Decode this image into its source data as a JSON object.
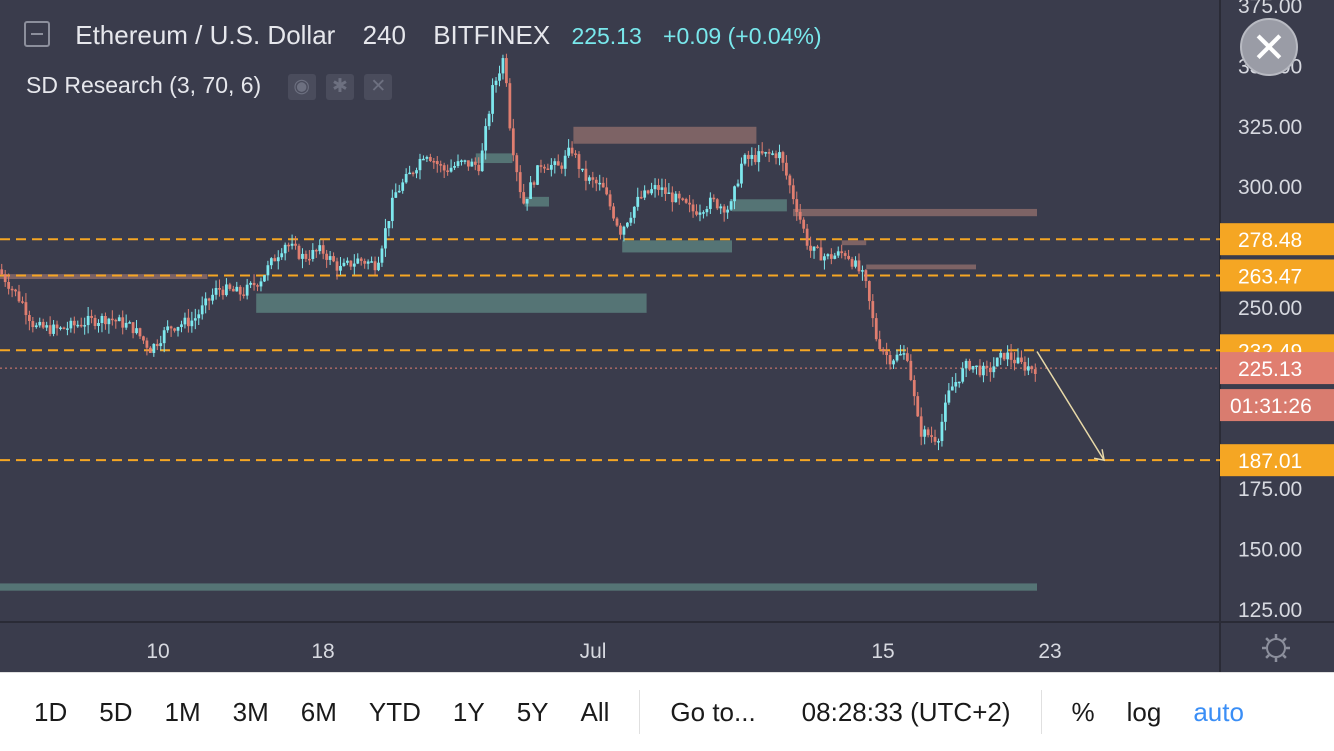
{
  "legend": {
    "symbol": "Ethereum / U.S. Dollar",
    "interval": "240",
    "exchange": "BITFINEX",
    "price": "225.13",
    "change": "+0.09 (+0.04%)"
  },
  "indicator": {
    "name": "SD Research (3, 70, 6)",
    "buttons": [
      "◉",
      "✱",
      "✕"
    ]
  },
  "close_button": "✕",
  "colors": {
    "background": "#3a3c4c",
    "up": "#7ee8ee",
    "down": "#e07e70",
    "level_line": "#f5a623",
    "supply_zone": "#8a6a6a",
    "demand_zone": "#5a7e7c"
  },
  "chart_data": {
    "type": "candlestick",
    "title": "Ethereum / U.S. Dollar",
    "price_scale": "right",
    "ylim": [
      120,
      375
    ],
    "y_ticks": [
      "375.00",
      "350.00",
      "325.00",
      "300.00",
      "250.00",
      "175.00",
      "150.00",
      "125.00"
    ],
    "x_ticks": [
      "10",
      "18",
      "Jul",
      "15",
      "23"
    ],
    "price_labels": [
      {
        "value": 278.48,
        "text": "278.48",
        "kind": "level"
      },
      {
        "value": 263.47,
        "text": "263.47",
        "kind": "level"
      },
      {
        "value": 232.49,
        "text": "232.49",
        "kind": "level"
      },
      {
        "value": 225.13,
        "text": "225.13",
        "kind": "last"
      },
      {
        "value": 187.01,
        "text": "187.01",
        "kind": "level"
      }
    ],
    "countdown": "01:31:26",
    "horizontal_levels": [
      278.48,
      263.47,
      232.49,
      187.01
    ],
    "zones": [
      {
        "type": "supply",
        "top": 264,
        "bottom": 262,
        "x_from": 0.0,
        "x_to": 0.17
      },
      {
        "type": "demand",
        "top": 256,
        "bottom": 248,
        "x_from": 0.21,
        "x_to": 0.53
      },
      {
        "type": "demand",
        "top": 314,
        "bottom": 310,
        "x_from": 0.39,
        "x_to": 0.42
      },
      {
        "type": "supply",
        "top": 325,
        "bottom": 318,
        "x_from": 0.47,
        "x_to": 0.62
      },
      {
        "type": "demand",
        "top": 296,
        "bottom": 292,
        "x_from": 0.43,
        "x_to": 0.45
      },
      {
        "type": "demand",
        "top": 295,
        "bottom": 290,
        "x_from": 0.6,
        "x_to": 0.645
      },
      {
        "type": "demand",
        "top": 278,
        "bottom": 273,
        "x_from": 0.51,
        "x_to": 0.6
      },
      {
        "type": "supply",
        "top": 291,
        "bottom": 288,
        "x_from": 0.65,
        "x_to": 0.85
      },
      {
        "type": "supply",
        "top": 278,
        "bottom": 276,
        "x_from": 0.69,
        "x_to": 0.71
      },
      {
        "type": "supply",
        "top": 268,
        "bottom": 266,
        "x_from": 0.71,
        "x_to": 0.8
      },
      {
        "type": "demand",
        "top": 136,
        "bottom": 133,
        "x_from": 0.0,
        "x_to": 0.85
      }
    ],
    "projection": {
      "from": [
        0.85,
        232
      ],
      "to": [
        0.905,
        187
      ]
    },
    "price_path": [
      [
        0.0,
        266
      ],
      [
        0.02,
        252
      ],
      [
        0.03,
        242
      ],
      [
        0.05,
        241
      ],
      [
        0.07,
        244
      ],
      [
        0.09,
        246
      ],
      [
        0.11,
        242
      ],
      [
        0.125,
        233
      ],
      [
        0.14,
        242
      ],
      [
        0.16,
        245
      ],
      [
        0.18,
        258
      ],
      [
        0.2,
        256
      ],
      [
        0.215,
        262
      ],
      [
        0.235,
        277
      ],
      [
        0.25,
        271
      ],
      [
        0.265,
        274
      ],
      [
        0.28,
        266
      ],
      [
        0.295,
        270
      ],
      [
        0.31,
        268
      ],
      [
        0.325,
        297
      ],
      [
        0.34,
        307
      ],
      [
        0.35,
        315
      ],
      [
        0.365,
        307
      ],
      [
        0.38,
        310
      ],
      [
        0.395,
        309
      ],
      [
        0.405,
        340
      ],
      [
        0.415,
        355
      ],
      [
        0.42,
        322
      ],
      [
        0.43,
        293
      ],
      [
        0.445,
        310
      ],
      [
        0.46,
        308
      ],
      [
        0.47,
        316
      ],
      [
        0.48,
        304
      ],
      [
        0.495,
        300
      ],
      [
        0.51,
        282
      ],
      [
        0.525,
        295
      ],
      [
        0.54,
        300
      ],
      [
        0.555,
        295
      ],
      [
        0.57,
        290
      ],
      [
        0.585,
        294
      ],
      [
        0.6,
        291
      ],
      [
        0.61,
        311
      ],
      [
        0.625,
        313
      ],
      [
        0.64,
        314
      ],
      [
        0.655,
        291
      ],
      [
        0.665,
        274
      ],
      [
        0.68,
        271
      ],
      [
        0.695,
        273
      ],
      [
        0.71,
        262
      ],
      [
        0.72,
        237
      ],
      [
        0.73,
        229
      ],
      [
        0.745,
        231
      ],
      [
        0.755,
        199
      ],
      [
        0.77,
        196
      ],
      [
        0.78,
        216
      ],
      [
        0.795,
        227
      ],
      [
        0.81,
        223
      ],
      [
        0.825,
        231
      ],
      [
        0.84,
        226
      ],
      [
        0.85,
        225.13
      ]
    ]
  },
  "toolbar": {
    "ranges": [
      "1D",
      "5D",
      "1M",
      "3M",
      "6M",
      "YTD",
      "1Y",
      "5Y",
      "All"
    ],
    "goto": "Go to...",
    "time": "08:28:33 (UTC+2)",
    "percent": "%",
    "log": "log",
    "auto": "auto"
  }
}
